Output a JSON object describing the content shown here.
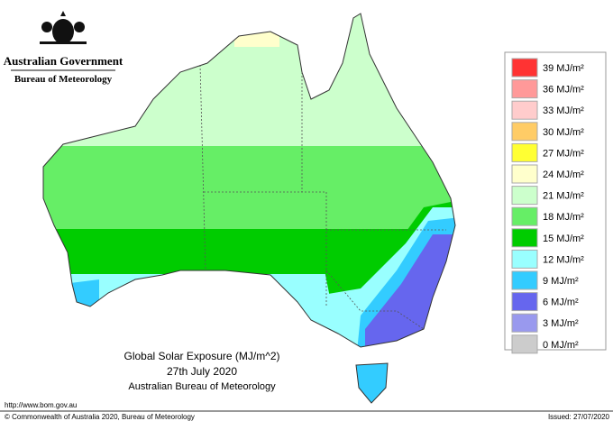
{
  "header": {
    "government": "Australian Government",
    "agency": "Bureau of Meteorology"
  },
  "map": {
    "title": "Global Solar Exposure (MJ/m^2)",
    "date": "27th July 2020",
    "source": "Australian Bureau of Meteorology"
  },
  "legend": [
    {
      "label": "39 MJ/m²",
      "color": "#ff3333"
    },
    {
      "label": "36 MJ/m²",
      "color": "#ff9999"
    },
    {
      "label": "33 MJ/m²",
      "color": "#ffcccc"
    },
    {
      "label": "30 MJ/m²",
      "color": "#ffcc66"
    },
    {
      "label": "27 MJ/m²",
      "color": "#ffff33"
    },
    {
      "label": "24 MJ/m²",
      "color": "#ffffcc"
    },
    {
      "label": "21 MJ/m²",
      "color": "#ccffcc"
    },
    {
      "label": "18 MJ/m²",
      "color": "#66ee66"
    },
    {
      "label": "15 MJ/m²",
      "color": "#00cc00"
    },
    {
      "label": "12 MJ/m²",
      "color": "#99ffff"
    },
    {
      "label": "9 MJ/m²",
      "color": "#33ccff"
    },
    {
      "label": "6 MJ/m²",
      "color": "#6666ee"
    },
    {
      "label": "3 MJ/m²",
      "color": "#9999ee"
    },
    {
      "label": "0 MJ/m²",
      "color": "#cccccc"
    }
  ],
  "footer": {
    "url": "http://www.bom.gov.au",
    "copyright": "© Commonwealth of Australia 2020, Bureau of Meteorology",
    "issued": "Issued: 27/07/2020"
  }
}
